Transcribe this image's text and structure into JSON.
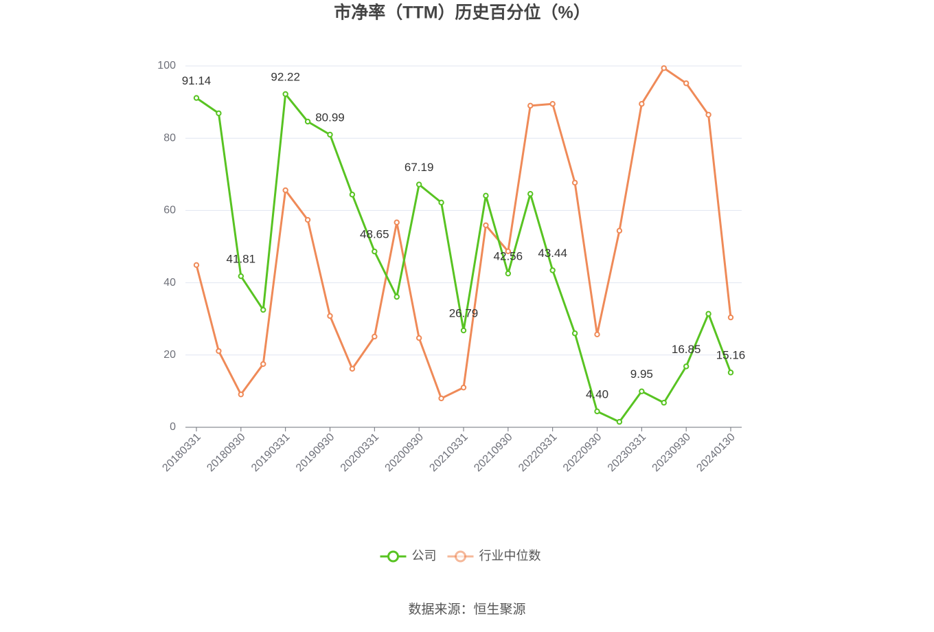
{
  "chart_data": {
    "type": "line",
    "title": "市净率（TTM）历史百分位（%）",
    "source": "数据来源：恒生聚源",
    "categories": [
      "20180331",
      null,
      "20180930",
      null,
      "20190331",
      null,
      "20190930",
      null,
      "20200331",
      null,
      "20200930",
      null,
      "20210331",
      null,
      "20210930",
      null,
      "20220331",
      null,
      "20220930",
      null,
      "20230331",
      null,
      "20230930",
      null,
      "20240130"
    ],
    "series": [
      {
        "name": "公司",
        "color": "#58c322",
        "values": [
          91.14,
          86.9,
          41.81,
          32.5,
          92.22,
          84.6,
          80.99,
          64.4,
          48.65,
          36.1,
          67.19,
          62.2,
          26.79,
          64.1,
          42.56,
          64.6,
          43.44,
          26.0,
          4.4,
          1.5,
          9.95,
          6.8,
          16.85,
          31.4,
          15.16
        ],
        "value_labels": [
          "91.14",
          null,
          "41.81",
          null,
          "92.22",
          null,
          "80.99",
          null,
          "48.65",
          null,
          "67.19",
          null,
          "26.79",
          null,
          "42.56",
          null,
          "43.44",
          null,
          "4.40",
          null,
          "9.95",
          null,
          "16.85",
          null,
          "15.16"
        ]
      },
      {
        "name": "行业中位数",
        "color": "#ef8a58",
        "values": [
          44.9,
          21.1,
          9.1,
          17.5,
          65.6,
          57.4,
          30.8,
          16.2,
          25.1,
          56.7,
          24.7,
          8.0,
          11.0,
          55.9,
          48.7,
          89.0,
          89.5,
          67.7,
          25.7,
          54.4,
          89.5,
          99.4,
          95.2,
          86.5,
          30.4
        ]
      }
    ],
    "ylim": [
      0,
      100
    ],
    "yticks": [
      0,
      20,
      40,
      60,
      80,
      100
    ],
    "grid": true,
    "legend": "bottom"
  }
}
